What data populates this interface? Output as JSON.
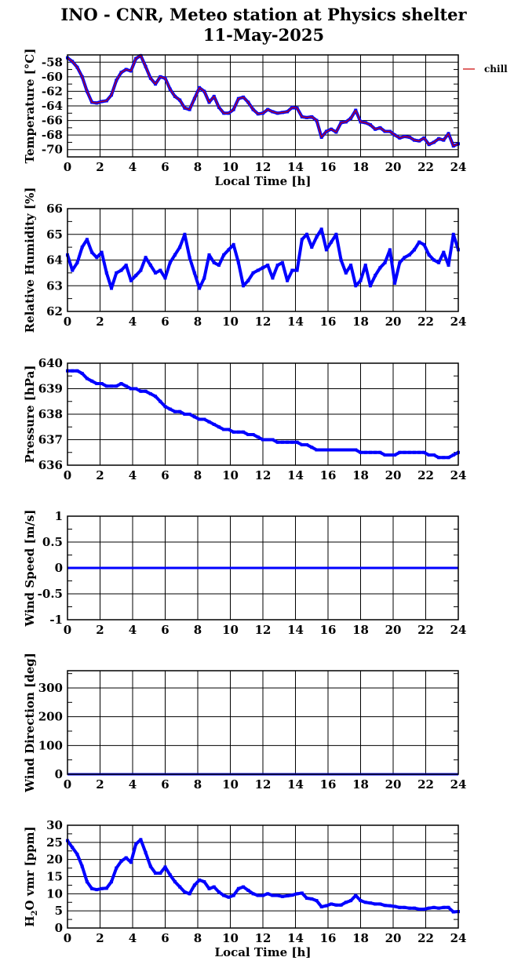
{
  "title_line1": "INO - CNR, Meteo station at Physics shelter",
  "title_line2": "11-May-2025",
  "xlabel": "Local Time [h]",
  "colors": {
    "series": "#0000ff",
    "chill": "#cc0000",
    "grid": "#000000"
  },
  "chart_data": [
    {
      "type": "scatter",
      "ylabel": "Temperature [°C]",
      "xlim": [
        0,
        24
      ],
      "ylim": [
        -71,
        -57
      ],
      "yticks": [
        -58,
        -60,
        -62,
        -64,
        -66,
        -68,
        -70
      ],
      "xticks": [
        0,
        2,
        4,
        6,
        8,
        10,
        12,
        14,
        16,
        18,
        20,
        22,
        24
      ],
      "show_xlabel": true,
      "legend": {
        "label": "chill",
        "position": "right"
      },
      "overlay_line": true,
      "x": [
        0,
        0.3,
        0.6,
        0.9,
        1.2,
        1.5,
        1.8,
        2.1,
        2.4,
        2.7,
        3.0,
        3.3,
        3.6,
        3.9,
        4.2,
        4.5,
        4.8,
        5.1,
        5.4,
        5.7,
        6.0,
        6.3,
        6.6,
        6.9,
        7.2,
        7.5,
        7.8,
        8.1,
        8.4,
        8.7,
        9.0,
        9.3,
        9.6,
        9.9,
        10.2,
        10.5,
        10.8,
        11.1,
        11.4,
        11.7,
        12.0,
        12.3,
        12.6,
        12.9,
        13.2,
        13.5,
        13.8,
        14.1,
        14.4,
        14.7,
        15.0,
        15.3,
        15.6,
        15.9,
        16.2,
        16.5,
        16.8,
        17.1,
        17.4,
        17.7,
        18.0,
        18.3,
        18.6,
        18.9,
        19.2,
        19.5,
        19.8,
        20.1,
        20.4,
        20.7,
        21.0,
        21.3,
        21.6,
        21.9,
        22.2,
        22.5,
        22.8,
        23.1,
        23.4,
        23.7,
        24.0
      ],
      "y": [
        -57.4,
        -57.9,
        -58.7,
        -60.0,
        -62.0,
        -63.5,
        -63.6,
        -63.4,
        -63.3,
        -62.5,
        -60.5,
        -59.4,
        -59.0,
        -59.2,
        -57.5,
        -57.1,
        -58.6,
        -60.2,
        -61.0,
        -60.0,
        -60.2,
        -61.7,
        -62.7,
        -63.2,
        -64.3,
        -64.5,
        -63.0,
        -61.5,
        -62.0,
        -63.5,
        -62.7,
        -64.2,
        -65.0,
        -65.0,
        -64.5,
        -63.0,
        -62.8,
        -63.5,
        -64.5,
        -65.1,
        -65.0,
        -64.5,
        -64.8,
        -65.0,
        -64.9,
        -64.8,
        -64.2,
        -64.3,
        -65.5,
        -65.6,
        -65.5,
        -66.0,
        -68.3,
        -67.5,
        -67.2,
        -67.6,
        -66.3,
        -66.2,
        -65.7,
        -64.6,
        -66.2,
        -66.3,
        -66.6,
        -67.2,
        -67.0,
        -67.5,
        -67.5,
        -68.0,
        -68.4,
        -68.2,
        -68.3,
        -68.7,
        -68.8,
        -68.4,
        -69.3,
        -69.0,
        -68.5,
        -68.7,
        -67.8,
        -69.5,
        -69.2
      ]
    },
    {
      "type": "scatter",
      "ylabel": "Relative Humidity [%]",
      "xlim": [
        0,
        24
      ],
      "ylim": [
        62,
        66
      ],
      "yticks": [
        62,
        63,
        64,
        65,
        66
      ],
      "xticks": [
        0,
        2,
        4,
        6,
        8,
        10,
        12,
        14,
        16,
        18,
        20,
        22,
        24
      ],
      "show_xlabel": false,
      "x": [
        0,
        0.3,
        0.6,
        0.9,
        1.2,
        1.5,
        1.8,
        2.1,
        2.4,
        2.7,
        3.0,
        3.3,
        3.6,
        3.9,
        4.2,
        4.5,
        4.8,
        5.1,
        5.4,
        5.7,
        6.0,
        6.3,
        6.6,
        6.9,
        7.2,
        7.5,
        7.8,
        8.1,
        8.4,
        8.7,
        9.0,
        9.3,
        9.6,
        9.9,
        10.2,
        10.5,
        10.8,
        11.1,
        11.4,
        11.7,
        12.0,
        12.3,
        12.6,
        12.9,
        13.2,
        13.5,
        13.8,
        14.1,
        14.4,
        14.7,
        15.0,
        15.3,
        15.6,
        15.9,
        16.2,
        16.5,
        16.8,
        17.1,
        17.4,
        17.7,
        18.0,
        18.3,
        18.6,
        18.9,
        19.2,
        19.5,
        19.8,
        20.1,
        20.4,
        20.7,
        21.0,
        21.3,
        21.6,
        21.9,
        22.2,
        22.5,
        22.8,
        23.1,
        23.4,
        23.7,
        24.0
      ],
      "y": [
        64.2,
        63.6,
        63.9,
        64.5,
        64.8,
        64.3,
        64.1,
        64.3,
        63.5,
        62.9,
        63.5,
        63.6,
        63.8,
        63.2,
        63.4,
        63.6,
        64.1,
        63.8,
        63.5,
        63.6,
        63.3,
        63.9,
        64.2,
        64.5,
        65.0,
        64.1,
        63.5,
        62.9,
        63.3,
        64.2,
        63.9,
        63.8,
        64.2,
        64.4,
        64.6,
        63.9,
        63.0,
        63.2,
        63.5,
        63.6,
        63.7,
        63.8,
        63.3,
        63.8,
        63.9,
        63.2,
        63.6,
        63.6,
        64.8,
        65.0,
        64.5,
        64.9,
        65.2,
        64.4,
        64.7,
        65.0,
        64.0,
        63.5,
        63.8,
        63.0,
        63.2,
        63.8,
        63.0,
        63.4,
        63.7,
        63.9,
        64.4,
        63.1,
        63.9,
        64.1,
        64.2,
        64.4,
        64.7,
        64.6,
        64.2,
        64.0,
        63.9,
        64.3,
        63.8,
        65.0,
        64.4
      ]
    },
    {
      "type": "scatter",
      "ylabel": "Pressure [hPa]",
      "xlim": [
        0,
        24
      ],
      "ylim": [
        636,
        640
      ],
      "yticks": [
        636,
        637,
        638,
        639,
        640
      ],
      "xticks": [
        0,
        2,
        4,
        6,
        8,
        10,
        12,
        14,
        16,
        18,
        20,
        22,
        24
      ],
      "show_xlabel": false,
      "x": [
        0,
        0.3,
        0.6,
        0.9,
        1.2,
        1.5,
        1.8,
        2.1,
        2.4,
        2.7,
        3.0,
        3.3,
        3.6,
        3.9,
        4.2,
        4.5,
        4.8,
        5.1,
        5.4,
        5.7,
        6.0,
        6.3,
        6.6,
        6.9,
        7.2,
        7.5,
        7.8,
        8.1,
        8.4,
        8.7,
        9.0,
        9.3,
        9.6,
        9.9,
        10.2,
        10.5,
        10.8,
        11.1,
        11.4,
        11.7,
        12.0,
        12.3,
        12.6,
        12.9,
        13.2,
        13.5,
        13.8,
        14.1,
        14.4,
        14.7,
        15.0,
        15.3,
        15.6,
        15.9,
        16.2,
        16.5,
        16.8,
        17.1,
        17.4,
        17.7,
        18.0,
        18.3,
        18.6,
        18.9,
        19.2,
        19.5,
        19.8,
        20.1,
        20.4,
        20.7,
        21.0,
        21.3,
        21.6,
        21.9,
        22.2,
        22.5,
        22.8,
        23.1,
        23.4,
        23.7,
        24.0
      ],
      "y": [
        639.7,
        639.7,
        639.7,
        639.6,
        639.4,
        639.3,
        639.2,
        639.2,
        639.1,
        639.1,
        639.1,
        639.2,
        639.1,
        639.0,
        639.0,
        638.9,
        638.9,
        638.8,
        638.7,
        638.5,
        638.3,
        638.2,
        638.1,
        638.1,
        638.0,
        638.0,
        637.9,
        637.8,
        637.8,
        637.7,
        637.6,
        637.5,
        637.4,
        637.4,
        637.3,
        637.3,
        637.3,
        637.2,
        637.2,
        637.1,
        637.0,
        637.0,
        637.0,
        636.9,
        636.9,
        636.9,
        636.9,
        636.9,
        636.8,
        636.8,
        636.7,
        636.6,
        636.6,
        636.6,
        636.6,
        636.6,
        636.6,
        636.6,
        636.6,
        636.6,
        636.5,
        636.5,
        636.5,
        636.5,
        636.5,
        636.4,
        636.4,
        636.4,
        636.5,
        636.5,
        636.5,
        636.5,
        636.5,
        636.5,
        636.4,
        636.4,
        636.3,
        636.3,
        636.3,
        636.4,
        636.5
      ]
    },
    {
      "type": "line",
      "ylabel": "Wind Speed [m/s]",
      "xlim": [
        0,
        24
      ],
      "ylim": [
        -1,
        1
      ],
      "yticks": [
        -1,
        -0.5,
        0,
        0.5,
        1
      ],
      "ytick_labels": [
        "-1",
        "-0.5",
        "0",
        "0.5",
        "1"
      ],
      "xticks": [
        0,
        2,
        4,
        6,
        8,
        10,
        12,
        14,
        16,
        18,
        20,
        22,
        24
      ],
      "show_xlabel": false,
      "x": [
        0,
        24
      ],
      "y": [
        0,
        0
      ]
    },
    {
      "type": "line",
      "ylabel": "Wind Direction [deg]",
      "xlim": [
        0,
        24
      ],
      "ylim": [
        0,
        360
      ],
      "yticks": [
        0,
        100,
        200,
        300
      ],
      "minor_yticks": [
        50,
        150,
        250,
        350
      ],
      "xticks": [
        0,
        2,
        4,
        6,
        8,
        10,
        12,
        14,
        16,
        18,
        20,
        22,
        24
      ],
      "show_xlabel": false,
      "x": [
        0,
        24
      ],
      "y": [
        0,
        0
      ]
    },
    {
      "type": "scatter",
      "ylabel": "H2O vmr [ppm]",
      "ylabel_parts": [
        "H",
        "2",
        "O vmr [ppm]"
      ],
      "xlim": [
        0,
        24
      ],
      "ylim": [
        0,
        30
      ],
      "yticks": [
        0,
        5,
        10,
        15,
        20,
        25,
        30
      ],
      "xticks": [
        0,
        2,
        4,
        6,
        8,
        10,
        12,
        14,
        16,
        18,
        20,
        22,
        24
      ],
      "show_xlabel": true,
      "x": [
        0,
        0.3,
        0.6,
        0.9,
        1.2,
        1.5,
        1.8,
        2.1,
        2.4,
        2.7,
        3.0,
        3.3,
        3.6,
        3.9,
        4.2,
        4.5,
        4.8,
        5.1,
        5.4,
        5.7,
        6.0,
        6.3,
        6.6,
        6.9,
        7.2,
        7.5,
        7.8,
        8.1,
        8.4,
        8.7,
        9.0,
        9.3,
        9.6,
        9.9,
        10.2,
        10.5,
        10.8,
        11.1,
        11.4,
        11.7,
        12.0,
        12.3,
        12.6,
        12.9,
        13.2,
        13.5,
        13.8,
        14.1,
        14.4,
        14.7,
        15.0,
        15.3,
        15.6,
        15.9,
        16.2,
        16.5,
        16.8,
        17.1,
        17.4,
        17.7,
        18.0,
        18.3,
        18.6,
        18.9,
        19.2,
        19.5,
        19.8,
        20.1,
        20.4,
        20.7,
        21.0,
        21.3,
        21.6,
        21.9,
        22.2,
        22.5,
        22.8,
        23.1,
        23.4,
        23.7,
        24.0
      ],
      "y": [
        25.5,
        23.5,
        21.5,
        18.0,
        13.5,
        11.5,
        11.2,
        11.5,
        11.6,
        13.5,
        17.5,
        19.5,
        20.5,
        19.2,
        24.5,
        25.8,
        22.0,
        18.0,
        16.0,
        16.0,
        17.8,
        15.5,
        13.5,
        12.0,
        10.5,
        10.0,
        12.5,
        14.0,
        13.5,
        11.5,
        12.0,
        10.5,
        9.5,
        9.0,
        9.5,
        11.5,
        12.0,
        11.0,
        10.0,
        9.5,
        9.5,
        10.0,
        9.5,
        9.5,
        9.2,
        9.4,
        9.6,
        10.0,
        10.2,
        8.7,
        8.5,
        8.0,
        6.2,
        6.5,
        7.0,
        6.7,
        6.7,
        7.5,
        8.0,
        9.5,
        8.0,
        7.5,
        7.3,
        7.0,
        7.0,
        6.6,
        6.5,
        6.3,
        6.0,
        6.0,
        5.8,
        5.8,
        5.5,
        5.5,
        5.8,
        6.0,
        5.8,
        6.0,
        6.0,
        4.7,
        4.8
      ]
    }
  ]
}
